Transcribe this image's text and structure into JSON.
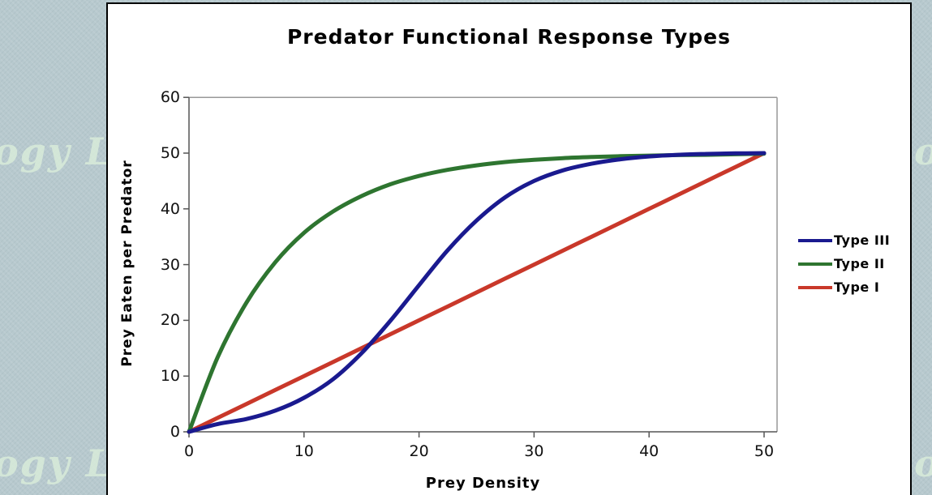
{
  "window": {
    "background_color": "#b7c9ce",
    "panel_color": "#ffffff",
    "panel_border_color": "#000000"
  },
  "watermark": {
    "fragment": "ogy L"
  },
  "chart_data": {
    "type": "line",
    "title": "Predator Functional Response Types",
    "xlabel": "Prey Density",
    "ylabel": "Prey Eaten per Predator",
    "xlim": [
      0,
      50
    ],
    "ylim": [
      0,
      60
    ],
    "x_ticks": [
      0,
      10,
      20,
      30,
      40,
      50
    ],
    "y_ticks": [
      0,
      10,
      20,
      30,
      40,
      50,
      60
    ],
    "grid": false,
    "legend_position": "right-outside",
    "axis_color": "#555555",
    "frame_color": "#999999",
    "line_width": 5,
    "x": [
      0,
      2.5,
      5,
      7.5,
      10,
      12.5,
      15,
      17.5,
      20,
      22.5,
      25,
      27.5,
      30,
      32.5,
      35,
      37.5,
      40,
      42.5,
      45,
      47.5,
      50
    ],
    "series": [
      {
        "name": "Type III",
        "color": "#1a1a8f",
        "shape": "sigmoid",
        "values": [
          0,
          1.4,
          2.3,
          3.8,
          6.1,
          9.4,
          14.1,
          19.9,
          26.3,
          32.6,
          37.9,
          42.1,
          45.0,
          46.9,
          48.1,
          48.9,
          49.4,
          49.7,
          49.85,
          49.95,
          50
        ]
      },
      {
        "name": "Type II",
        "color": "#2e7530",
        "shape": "saturating",
        "values": [
          0,
          13.4,
          23.2,
          30.4,
          35.7,
          39.5,
          42.3,
          44.4,
          45.9,
          47.0,
          47.8,
          48.4,
          48.8,
          49.1,
          49.3,
          49.45,
          49.55,
          49.65,
          49.7,
          49.8,
          49.9
        ]
      },
      {
        "name": "Type I",
        "color": "#c9382a",
        "shape": "linear",
        "values": [
          0,
          2.5,
          5,
          7.5,
          10,
          12.5,
          15,
          17.5,
          20,
          22.5,
          25,
          27.5,
          30,
          32.5,
          35,
          37.5,
          40,
          42.5,
          45,
          47.5,
          50
        ]
      }
    ]
  }
}
